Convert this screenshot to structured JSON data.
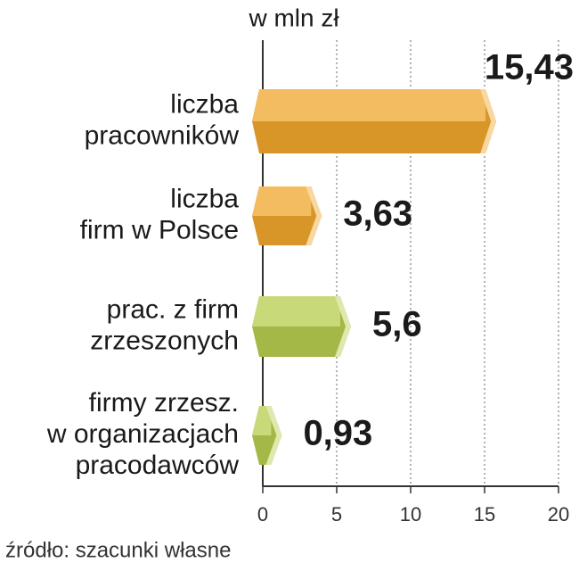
{
  "chart_data": {
    "type": "bar",
    "orientation": "horizontal",
    "title": "w mln zł",
    "source": "źródło: szacunki własne",
    "categories": [
      "liczba\npracowników",
      "liczba\nfirm w Polsce",
      "prac. z firm\nzrzeszonych",
      "firmy zrzesz.\nw organizacjach\npracodawców"
    ],
    "values": [
      15.43,
      3.63,
      5.6,
      0.93
    ],
    "value_labels": [
      "15,43",
      "3,63",
      "5,6",
      "0,93"
    ],
    "colors": [
      "#f0a52c",
      "#f0a52c",
      "#b5cc4e",
      "#b5cc4e"
    ],
    "xlim": [
      0,
      20
    ],
    "xticks": [
      0,
      5,
      10,
      15,
      20
    ],
    "grid": true
  }
}
